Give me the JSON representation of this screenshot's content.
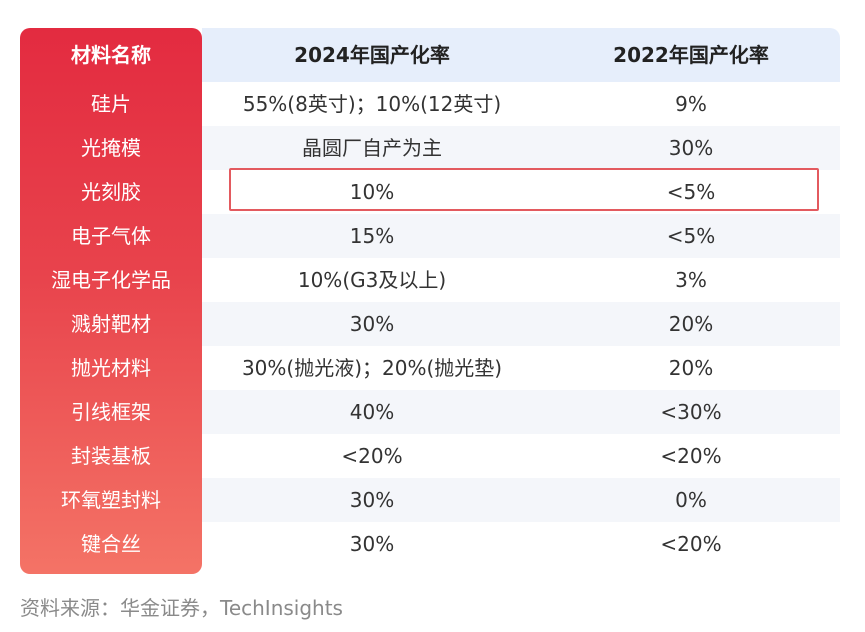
{
  "table": {
    "headers": {
      "name": "材料名称",
      "y2024": "2024年国产化率",
      "y2022": "2022年国产化率"
    },
    "rows": [
      {
        "name": "硅片",
        "y2024": "55%(8英寸)；10%(12英寸)",
        "y2022": "9%"
      },
      {
        "name": "光掩模",
        "y2024": "晶圆厂自产为主",
        "y2022": "30%"
      },
      {
        "name": "光刻胶",
        "y2024": "10%",
        "y2022": "<5%"
      },
      {
        "name": "电子气体",
        "y2024": "15%",
        "y2022": "<5%"
      },
      {
        "name": "湿电子化学品",
        "y2024": "10%(G3及以上)",
        "y2022": "3%"
      },
      {
        "name": "溅射靶材",
        "y2024": "30%",
        "y2022": "20%"
      },
      {
        "name": "抛光材料",
        "y2024": "30%(抛光液)；20%(抛光垫)",
        "y2022": "20%"
      },
      {
        "name": "引线框架",
        "y2024": "40%",
        "y2022": "<30%"
      },
      {
        "name": "封装基板",
        "y2024": "<20%",
        "y2022": "<20%"
      },
      {
        "name": "环氧塑封料",
        "y2024": "30%",
        "y2022": "0%"
      },
      {
        "name": "键合丝",
        "y2024": "30%",
        "y2022": "<20%"
      }
    ],
    "highlighted_row": 2
  },
  "source": "资料来源：华金证券，TechInsights",
  "colors": {
    "sidebar_top": "#e32b40",
    "sidebar_bottom": "#f47366",
    "header_bg": "#e6eefb",
    "band_bg": "#f4f6fa",
    "highlight_border": "#e35a5f"
  }
}
